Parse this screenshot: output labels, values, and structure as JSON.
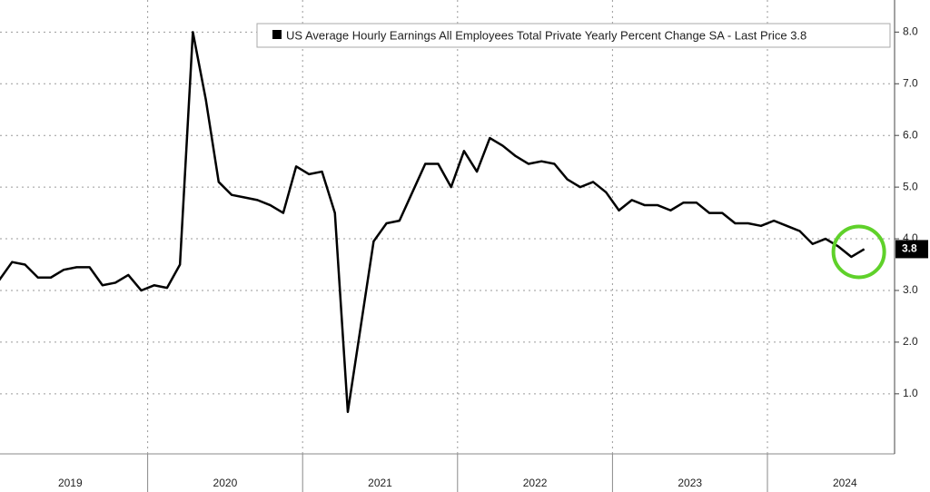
{
  "chart_data": {
    "type": "line",
    "categories": [
      "2019",
      "2020",
      "2021",
      "2022",
      "2023",
      "2024"
    ],
    "series": [
      {
        "name": "US Average Hourly Earnings All Employees Total Private Yearly Percent Change SA - Last Price 3.8",
        "color": "#000000",
        "values": [
          [
            3.2,
            3.55,
            3.5,
            3.25,
            3.25,
            3.4,
            3.45,
            3.45,
            3.1,
            3.15,
            3.3,
            3.0
          ],
          [
            3.1,
            3.05,
            3.5,
            8.0,
            6.7,
            5.1,
            4.85,
            4.8,
            4.75,
            4.65,
            4.5,
            5.4
          ],
          [
            5.25,
            5.3,
            4.5,
            0.65,
            2.3,
            3.95,
            4.3,
            4.35,
            4.9,
            5.45,
            5.45,
            5.0
          ],
          [
            5.7,
            5.3,
            5.95,
            5.8,
            5.6,
            5.45,
            5.5,
            5.45,
            5.15,
            5.0,
            5.1,
            4.9
          ],
          [
            4.55,
            4.75,
            4.65,
            4.65,
            4.55,
            4.7,
            4.7,
            4.5,
            4.5,
            4.3,
            4.3,
            4.25
          ],
          [
            4.35,
            4.25,
            4.15,
            3.9,
            4.0,
            3.85,
            3.65,
            3.8
          ]
        ]
      }
    ],
    "last_value": 3.8,
    "ylim": [
      0.0,
      8.7
    ],
    "yticks": [
      {
        "value": 1,
        "label": "1.0"
      },
      {
        "value": 2,
        "label": "2.0"
      },
      {
        "value": 3,
        "label": "3.0"
      },
      {
        "value": 4,
        "label": "4.0"
      },
      {
        "value": 5,
        "label": "5.0"
      },
      {
        "value": 6,
        "label": "6.0"
      },
      {
        "value": 7,
        "label": "7.0"
      },
      {
        "value": 8,
        "label": "8.0"
      }
    ],
    "grid": true,
    "legend_position": "top-right"
  }
}
